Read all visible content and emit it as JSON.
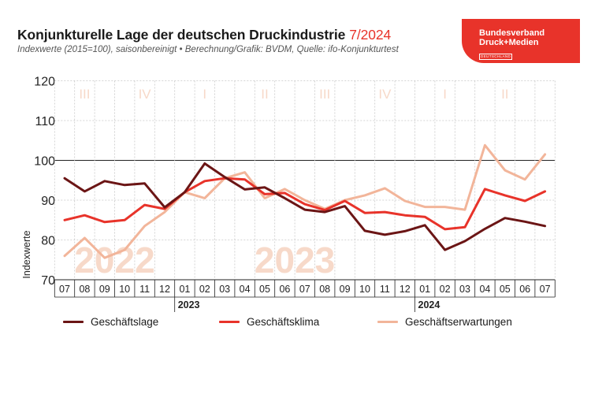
{
  "header": {
    "title": "Konjunkturelle Lage der deutschen Druckindustrie",
    "period": "7/2024",
    "subtitle": "Indexwerte (2015=100), saisonbereinigt • Berechnung/Grafik: BVDM, Quelle: ifo-Konjunkturtest"
  },
  "logo": {
    "line1": "Bundesverband",
    "line2": "Druck+Medien",
    "line3": "DEUTSCHLAND"
  },
  "colors": {
    "lage": "#6b1515",
    "klima": "#e8332a",
    "erwartungen": "#f2b59a",
    "watermark": "#f7d9c9",
    "grid": "#c8c8c8"
  },
  "chart_data": {
    "type": "line",
    "ylabel": "Indexwerte",
    "ylim": [
      70,
      120
    ],
    "yticks": [
      70,
      80,
      90,
      100,
      110,
      120
    ],
    "categories": [
      "07",
      "08",
      "09",
      "10",
      "11",
      "12",
      "01",
      "02",
      "03",
      "04",
      "05",
      "06",
      "07",
      "08",
      "09",
      "10",
      "11",
      "12",
      "01",
      "02",
      "03",
      "04",
      "05",
      "06",
      "07"
    ],
    "year_labels": [
      {
        "label": "2023",
        "index": 6
      },
      {
        "label": "2024",
        "index": 18
      }
    ],
    "watermark_years": [
      {
        "label": "2022",
        "center_index": 2.5
      },
      {
        "label": "2023",
        "center_index": 11.5
      }
    ],
    "quarter_labels": [
      {
        "label": "III",
        "center_index": 1
      },
      {
        "label": "IV",
        "center_index": 4
      },
      {
        "label": "I",
        "center_index": 7
      },
      {
        "label": "II",
        "center_index": 10
      },
      {
        "label": "III",
        "center_index": 13
      },
      {
        "label": "IV",
        "center_index": 16
      },
      {
        "label": "I",
        "center_index": 19
      },
      {
        "label": "II",
        "center_index": 22
      }
    ],
    "series": [
      {
        "name": "Geschäftserwartungen",
        "key": "erwartungen",
        "values": [
          76.0,
          80.5,
          75.5,
          77.5,
          83.5,
          87.0,
          92.0,
          90.5,
          95.5,
          97.0,
          90.5,
          92.8,
          90.0,
          87.8,
          90.0,
          91.2,
          93.0,
          89.8,
          88.3,
          88.3,
          87.6,
          103.8,
          97.5,
          95.2,
          101.5
        ]
      },
      {
        "name": "Geschäftsklima",
        "key": "klima",
        "values": [
          85.0,
          86.2,
          84.5,
          85.0,
          88.8,
          87.8,
          92.0,
          94.8,
          95.5,
          95.2,
          91.5,
          91.8,
          89.0,
          87.5,
          89.8,
          86.8,
          87.0,
          86.2,
          85.8,
          82.7,
          83.2,
          92.8,
          91.2,
          89.8,
          92.2
        ]
      },
      {
        "name": "Geschäftslage",
        "key": "lage",
        "values": [
          95.5,
          92.2,
          94.8,
          93.8,
          94.2,
          88.2,
          92.0,
          99.2,
          95.8,
          92.7,
          93.2,
          90.5,
          87.6,
          87.0,
          88.5,
          82.3,
          81.3,
          82.2,
          83.7,
          77.5,
          79.7,
          82.8,
          85.5,
          84.6,
          83.5
        ]
      }
    ]
  },
  "legend": [
    {
      "label": "Geschäftslage",
      "key": "lage"
    },
    {
      "label": "Geschäftsklima",
      "key": "klima"
    },
    {
      "label": "Geschäftserwartungen",
      "key": "erwartungen"
    }
  ]
}
